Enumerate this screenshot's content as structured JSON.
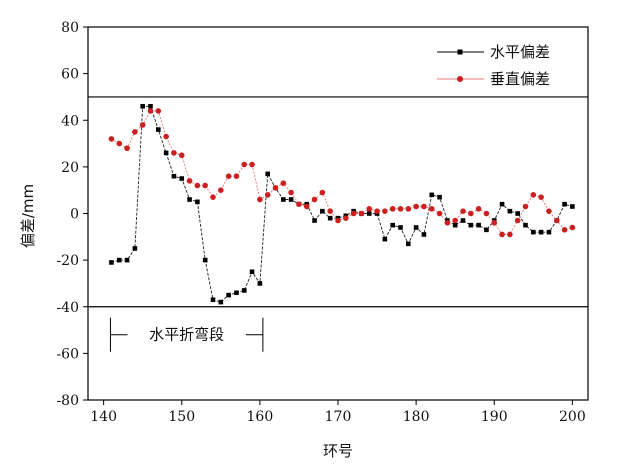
{
  "chart_data": {
    "type": "line",
    "xlabel": "环号",
    "ylabel": "偏差/mm",
    "xlim": [
      138,
      202
    ],
    "ylim": [
      -80,
      80
    ],
    "xticks": [
      140,
      150,
      160,
      170,
      180,
      190,
      200
    ],
    "yticks": [
      -80,
      -60,
      -40,
      -20,
      0,
      20,
      40,
      60,
      80
    ],
    "reference_lines": [
      50,
      -40
    ],
    "legend_position": "top-right",
    "annotation": {
      "text": "水平折弯段",
      "x_range": [
        141,
        160
      ],
      "y": -52
    },
    "series": [
      {
        "name": "水平偏差",
        "color": "#000000",
        "marker": "square",
        "x": [
          141,
          142,
          143,
          144,
          145,
          146,
          147,
          148,
          149,
          150,
          151,
          152,
          153,
          154,
          155,
          156,
          157,
          158,
          159,
          160,
          161,
          162,
          163,
          164,
          165,
          166,
          167,
          168,
          169,
          170,
          171,
          172,
          173,
          174,
          175,
          176,
          177,
          178,
          179,
          180,
          181,
          182,
          183,
          184,
          185,
          186,
          187,
          188,
          189,
          190,
          191,
          192,
          193,
          194,
          195,
          196,
          197,
          198,
          199,
          200
        ],
        "y": [
          -21,
          -20,
          -20,
          -15,
          46,
          46,
          36,
          26,
          16,
          15,
          6,
          5,
          -20,
          -37,
          -38,
          -35,
          -34,
          -33,
          -25,
          -30,
          17,
          11,
          6,
          6,
          4,
          4,
          -3,
          1,
          -2,
          -2,
          -1,
          1,
          0,
          0,
          0,
          -11,
          -5,
          -6,
          -13,
          -6,
          -9,
          8,
          7,
          -3,
          -5,
          -3,
          -5,
          -5,
          -7,
          -3,
          4,
          1,
          0,
          -5,
          -8,
          -8,
          -8,
          -3,
          4,
          3
        ]
      },
      {
        "name": "垂直偏差",
        "color": "#cc1f1f",
        "marker": "circle",
        "x": [
          141,
          142,
          143,
          144,
          145,
          146,
          147,
          148,
          149,
          150,
          151,
          152,
          153,
          154,
          155,
          156,
          157,
          158,
          159,
          160,
          161,
          162,
          163,
          164,
          165,
          166,
          167,
          168,
          169,
          170,
          171,
          172,
          173,
          174,
          175,
          176,
          177,
          178,
          179,
          180,
          181,
          182,
          183,
          184,
          185,
          186,
          187,
          188,
          189,
          190,
          191,
          192,
          193,
          194,
          195,
          196,
          197,
          198,
          199,
          200
        ],
        "y": [
          32,
          30,
          28,
          35,
          38,
          44,
          44,
          33,
          26,
          25,
          14,
          12,
          12,
          7,
          10,
          16,
          16,
          21,
          21,
          6,
          8,
          11,
          13,
          9,
          4,
          3,
          6,
          9,
          1,
          -3,
          -2,
          0,
          0,
          2,
          1,
          1,
          2,
          2,
          2,
          3,
          3,
          2,
          0,
          -4,
          -3,
          1,
          0,
          2,
          0,
          -4,
          -9,
          -9,
          -3,
          3,
          8,
          7,
          1,
          -3,
          -7,
          -6
        ]
      }
    ]
  }
}
